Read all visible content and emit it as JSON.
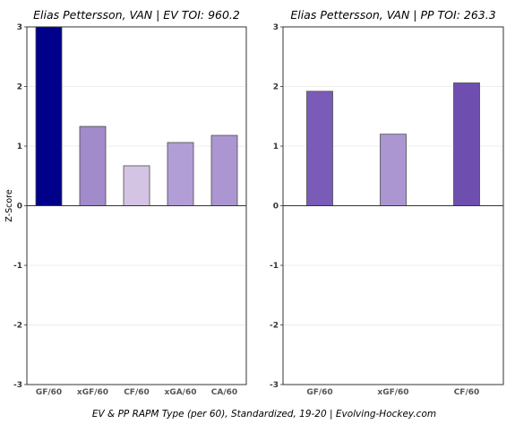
{
  "chart_data": [
    {
      "type": "bar",
      "title": "Elias Pettersson, VAN  |  EV TOI: 960.2",
      "ylabel": "Z-Score",
      "ylim": [
        -3,
        3
      ],
      "yticks": [
        -3,
        -2,
        -1,
        0,
        1,
        2,
        3
      ],
      "grid": true,
      "categories": [
        "GF/60",
        "xGF/60",
        "CF/60",
        "xGA/60",
        "CA/60"
      ],
      "values": [
        3.0,
        1.33,
        0.67,
        1.06,
        1.18
      ],
      "colors": [
        "#00008B",
        "#A28BCB",
        "#D4C4E4",
        "#B29ED6",
        "#AC96D1"
      ]
    },
    {
      "type": "bar",
      "title": "Elias Pettersson, VAN  |  PP TOI: 263.3",
      "ylim": [
        -3,
        3
      ],
      "yticks": [
        -3,
        -2,
        -1,
        0,
        1,
        2,
        3
      ],
      "grid": true,
      "categories": [
        "GF/60",
        "xGF/60",
        "CF/60"
      ],
      "values": [
        1.92,
        1.2,
        2.06
      ],
      "colors": [
        "#7A5BB8",
        "#AC96D1",
        "#6E4FB0"
      ]
    }
  ],
  "caption": "EV & PP RAPM Type (per 60), Standardized, 19-20    |    Evolving-Hockey.com"
}
